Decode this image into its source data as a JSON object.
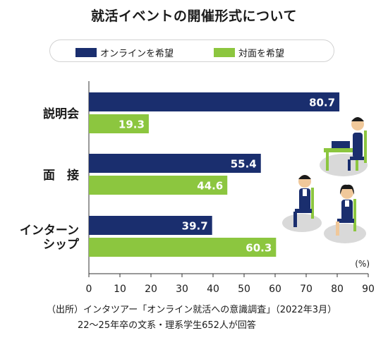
{
  "chart_data": {
    "type": "bar",
    "orientation": "horizontal",
    "title": "就活イベントの開催形式について",
    "categories": [
      "説明会",
      "面　接",
      "インターン\nシップ"
    ],
    "series": [
      {
        "name": "オンラインを希望",
        "values": [
          80.7,
          55.4,
          39.7
        ],
        "color": "#1a2e6e"
      },
      {
        "name": "対面を希望",
        "values": [
          19.3,
          44.6,
          60.3
        ],
        "color": "#8cc63f"
      }
    ],
    "xlim": [
      0,
      90
    ],
    "xticks": [
      "0",
      "10",
      "20",
      "30",
      "40",
      "50",
      "60",
      "70",
      "80",
      "90"
    ],
    "unit_label": "(%)",
    "legend_position": "top",
    "grid": false
  },
  "footer": {
    "source": "（出所）インタツアー「オンライン就活への意識調査」（2022年3月）",
    "note": "22～25年卒の文系・理系学生652人が回答"
  },
  "illustration_icons": [
    "desk-laptop-person-icon",
    "seated-man-icon",
    "seated-woman-icon"
  ]
}
